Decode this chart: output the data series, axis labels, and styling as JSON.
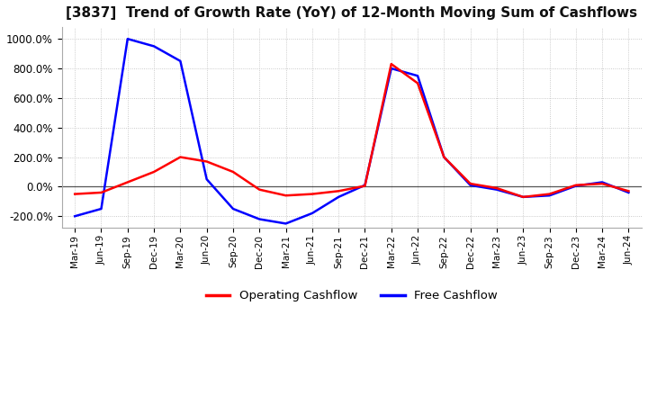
{
  "title": "[3837]  Trend of Growth Rate (YoY) of 12-Month Moving Sum of Cashflows",
  "title_fontsize": 11,
  "background_color": "#ffffff",
  "grid_color": "#bbbbbb",
  "ylim": [
    -280,
    1080
  ],
  "yticks": [
    -200,
    0,
    200,
    400,
    600,
    800,
    1000
  ],
  "legend_labels": [
    "Operating Cashflow",
    "Free Cashflow"
  ],
  "legend_colors": [
    "#ff0000",
    "#0000ff"
  ],
  "x_labels": [
    "Mar-19",
    "Jun-19",
    "Sep-19",
    "Dec-19",
    "Mar-20",
    "Jun-20",
    "Sep-20",
    "Dec-20",
    "Mar-21",
    "Jun-21",
    "Sep-21",
    "Dec-21",
    "Mar-22",
    "Jun-22",
    "Sep-22",
    "Dec-22",
    "Mar-23",
    "Jun-23",
    "Sep-23",
    "Dec-23",
    "Mar-24",
    "Jun-24"
  ],
  "operating_cashflow": [
    -50,
    -40,
    30,
    100,
    200,
    170,
    100,
    -20,
    -60,
    -50,
    -30,
    5,
    830,
    700,
    200,
    20,
    -10,
    -70,
    -50,
    10,
    20,
    -30
  ],
  "free_cashflow": [
    -200,
    -150,
    1000,
    950,
    850,
    50,
    -150,
    -220,
    -250,
    -180,
    -70,
    10,
    800,
    750,
    200,
    10,
    -20,
    -70,
    -60,
    5,
    30,
    -40
  ]
}
